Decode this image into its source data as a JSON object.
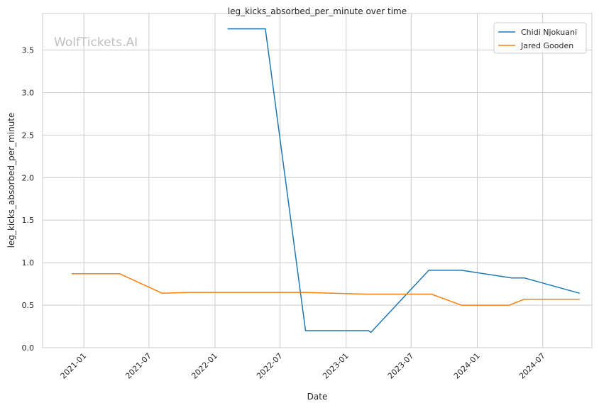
{
  "chart_data": {
    "type": "line",
    "title": "leg_kicks_absorbed_per_minute over time",
    "xlabel": "Date",
    "ylabel": "leg_kicks_absorbed_per_minute",
    "watermark": "WolfTickets.AI",
    "x_ticks": [
      "2021-01",
      "2021-07",
      "2022-01",
      "2022-07",
      "2023-01",
      "2023-07",
      "2024-01",
      "2024-07"
    ],
    "y_ticks": [
      "0.0",
      "0.5",
      "1.0",
      "1.5",
      "2.0",
      "2.5",
      "3.0",
      "3.5"
    ],
    "xlim": [
      "2020-09-08",
      "2024-11-15"
    ],
    "ylim": [
      0,
      3.93
    ],
    "grid": true,
    "legend_position": "top-right",
    "series": [
      {
        "name": "Chidi Njokuani",
        "color": "#1f77b4",
        "points": [
          [
            "2022-02-05",
            3.75
          ],
          [
            "2022-05-21",
            3.75
          ],
          [
            "2022-09-10",
            0.2
          ],
          [
            "2023-03-04",
            0.2
          ],
          [
            "2023-03-11",
            0.18
          ],
          [
            "2023-08-19",
            0.91
          ],
          [
            "2023-11-18",
            0.91
          ],
          [
            "2024-04-06",
            0.82
          ],
          [
            "2024-05-11",
            0.82
          ],
          [
            "2024-10-12",
            0.64
          ]
        ]
      },
      {
        "name": "Jared Gooden",
        "color": "#ff7f0e",
        "points": [
          [
            "2020-11-28",
            0.87
          ],
          [
            "2021-04-10",
            0.87
          ],
          [
            "2021-08-07",
            0.64
          ],
          [
            "2021-10-16",
            0.65
          ],
          [
            "2022-09-10",
            0.65
          ],
          [
            "2023-02-25",
            0.63
          ],
          [
            "2023-08-26",
            0.63
          ],
          [
            "2023-11-18",
            0.5
          ],
          [
            "2024-03-30",
            0.5
          ],
          [
            "2024-05-11",
            0.57
          ],
          [
            "2024-10-12",
            0.57
          ]
        ]
      }
    ]
  }
}
